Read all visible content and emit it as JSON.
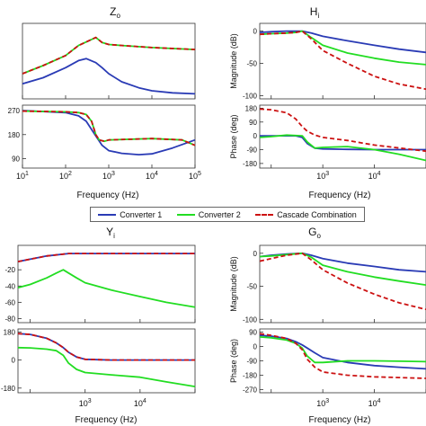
{
  "legend": {
    "items": [
      {
        "label": "Converter 1",
        "color": "#2a3bb5",
        "dash": "solid"
      },
      {
        "label": "Converter 2",
        "color": "#22dd22",
        "dash": "solid"
      },
      {
        "label": "Cascade Combination",
        "color": "#cc1111",
        "dash": "dashed"
      }
    ]
  },
  "chart_data": [
    {
      "type": "line",
      "title_main": "Z",
      "title_sub": "o",
      "xlabel": "Frequency  (Hz)",
      "xscale": "log",
      "xlim": [
        10,
        100000
      ],
      "x_ticks": [
        {
          "v": 10,
          "e": "1"
        },
        {
          "v": 100,
          "e": "2"
        },
        {
          "v": 1000,
          "e": "3"
        },
        {
          "v": 10000,
          "e": "4"
        },
        {
          "v": 100000,
          "e": "5"
        }
      ],
      "grid": false,
      "panels": [
        {
          "role": "magnitude",
          "ylabel": "",
          "ylim": [
            -45,
            30
          ],
          "yticks": [],
          "series": [
            {
              "name": "Converter 1",
              "x": [
                10,
                30,
                100,
                200,
                300,
                500,
                700,
                1000,
                2000,
                5000,
                10000,
                30000,
                100000
              ],
              "y": [
                -30,
                -24,
                -14,
                -7,
                -5,
                -9,
                -14,
                -20,
                -28,
                -34,
                -37,
                -39,
                -40
              ]
            },
            {
              "name": "Converter 2",
              "x": [
                10,
                30,
                100,
                200,
                400,
                500,
                700,
                1000,
                2000,
                10000,
                100000
              ],
              "y": [
                -20,
                -12,
                -2,
                8,
                14,
                16,
                11,
                9,
                8,
                6,
                4
              ]
            },
            {
              "name": "Cascade Combination",
              "x": [
                10,
                30,
                100,
                200,
                400,
                500,
                700,
                1000,
                2000,
                10000,
                100000
              ],
              "y": [
                -20,
                -12,
                -2,
                8,
                14,
                16,
                11,
                9,
                8,
                6,
                4
              ]
            }
          ]
        },
        {
          "role": "phase",
          "ylabel": "",
          "ylim": [
            55,
            290
          ],
          "yticks": [
            270,
            180,
            90
          ],
          "series": [
            {
              "name": "Converter 1",
              "x": [
                10,
                100,
                200,
                300,
                500,
                700,
                1000,
                2000,
                5000,
                10000,
                30000,
                100000
              ],
              "y": [
                270,
                262,
                250,
                230,
                175,
                140,
                120,
                110,
                105,
                108,
                130,
                160
              ]
            },
            {
              "name": "Converter 2",
              "x": [
                10,
                100,
                200,
                300,
                400,
                500,
                600,
                800,
                1000,
                10000,
                50000,
                100000
              ],
              "y": [
                268,
                265,
                262,
                255,
                230,
                180,
                160,
                155,
                160,
                165,
                160,
                140
              ]
            },
            {
              "name": "Cascade Combination",
              "x": [
                10,
                100,
                200,
                300,
                400,
                500,
                600,
                800,
                1000,
                10000,
                50000,
                100000
              ],
              "y": [
                268,
                265,
                262,
                255,
                230,
                180,
                160,
                155,
                160,
                165,
                160,
                140
              ]
            }
          ]
        }
      ]
    },
    {
      "type": "line",
      "title_main": "H",
      "title_sub": "i",
      "xlabel": "Frequency  (Hz)",
      "xscale": "log",
      "xlim": [
        60,
        100000
      ],
      "x_ticks": [
        {
          "v": 1000,
          "e": "3"
        },
        {
          "v": 10000,
          "e": "4"
        }
      ],
      "grid": false,
      "panels": [
        {
          "role": "magnitude",
          "ylabel": "Magnitude (dB)",
          "ylim": [
            -105,
            12
          ],
          "yticks": [
            0,
            -50,
            -100
          ],
          "series": [
            {
              "name": "Converter 1",
              "x": [
                60,
                100,
                200,
                400,
                600,
                1000,
                3000,
                10000,
                30000,
                100000
              ],
              "y": [
                -2,
                -1,
                0,
                0,
                -3,
                -8,
                -15,
                -22,
                -28,
                -33
              ]
            },
            {
              "name": "Converter 2",
              "x": [
                60,
                100,
                200,
                300,
                400,
                600,
                1000,
                3000,
                10000,
                30000,
                100000
              ],
              "y": [
                -5,
                -4,
                -3,
                -2,
                0,
                -10,
                -22,
                -34,
                -42,
                -48,
                -52
              ]
            },
            {
              "name": "Cascade Combination",
              "x": [
                60,
                100,
                200,
                300,
                400,
                600,
                1000,
                3000,
                10000,
                30000,
                100000
              ],
              "y": [
                -5,
                -4,
                -3,
                -2,
                0,
                -12,
                -30,
                -50,
                -70,
                -82,
                -90
              ]
            }
          ]
        },
        {
          "role": "phase",
          "ylabel": "Phase (deg)",
          "ylim": [
            -210,
            200
          ],
          "yticks": [
            180,
            90,
            0,
            -90,
            -180
          ],
          "series": [
            {
              "name": "Converter 1",
              "x": [
                60,
                100,
                200,
                300,
                400,
                500,
                700,
                1000,
                3000,
                10000,
                30000,
                100000
              ],
              "y": [
                0,
                0,
                0,
                0,
                -10,
                -50,
                -80,
                -85,
                -88,
                -90,
                -90,
                -90
              ]
            },
            {
              "name": "Converter 2",
              "x": [
                60,
                100,
                200,
                400,
                500,
                700,
                1000,
                3000,
                10000,
                30000,
                100000
              ],
              "y": [
                -10,
                -5,
                5,
                0,
                -40,
                -80,
                -75,
                -70,
                -90,
                -120,
                -160
              ]
            },
            {
              "name": "Cascade Combination",
              "x": [
                60,
                100,
                200,
                300,
                400,
                500,
                700,
                1000,
                3000,
                10000,
                100000
              ],
              "y": [
                175,
                170,
                150,
                110,
                60,
                30,
                5,
                -10,
                -30,
                -60,
                -100
              ]
            }
          ]
        }
      ]
    },
    {
      "type": "line",
      "title_main": "Y",
      "title_sub": "i",
      "xlabel": "Frequency  (Hz)",
      "xscale": "log",
      "xlim": [
        60,
        100000
      ],
      "x_ticks": [
        {
          "v": 1000,
          "e": "3"
        },
        {
          "v": 10000,
          "e": "4"
        }
      ],
      "grid": false,
      "panels": [
        {
          "role": "magnitude",
          "ylabel": "",
          "ylim": [
            -85,
            10
          ],
          "yticks": [
            -20,
            -40,
            -60,
            -80
          ],
          "series": [
            {
              "name": "Converter 1",
              "x": [
                60,
                100,
                200,
                500,
                1000,
                100000
              ],
              "y": [
                -10,
                -7,
                -3,
                0,
                0,
                0
              ]
            },
            {
              "name": "Converter 2",
              "x": [
                60,
                100,
                200,
                300,
                400,
                500,
                700,
                1000,
                3000,
                10000,
                30000,
                100000
              ],
              "y": [
                -42,
                -38,
                -30,
                -24,
                -20,
                -24,
                -30,
                -36,
                -45,
                -53,
                -60,
                -66
              ]
            },
            {
              "name": "Cascade Combination",
              "x": [
                60,
                100,
                200,
                500,
                1000,
                100000
              ],
              "y": [
                -10,
                -7,
                -3,
                0,
                0,
                0
              ]
            }
          ]
        },
        {
          "role": "phase",
          "ylabel": "",
          "ylim": [
            -210,
            200
          ],
          "yticks": [
            180,
            0,
            -180
          ],
          "series": [
            {
              "name": "Converter 1",
              "x": [
                60,
                100,
                200,
                300,
                400,
                500,
                700,
                1000,
                3000,
                100000
              ],
              "y": [
                170,
                165,
                140,
                110,
                80,
                50,
                20,
                5,
                0,
                0
              ]
            },
            {
              "name": "Converter 2",
              "x": [
                60,
                100,
                200,
                300,
                400,
                500,
                700,
                1000,
                3000,
                10000,
                30000,
                100000
              ],
              "y": [
                80,
                78,
                70,
                60,
                30,
                -20,
                -60,
                -80,
                -95,
                -110,
                -140,
                -170
              ]
            },
            {
              "name": "Cascade Combination",
              "x": [
                60,
                100,
                200,
                300,
                400,
                500,
                700,
                1000,
                3000,
                100000
              ],
              "y": [
                170,
                165,
                140,
                110,
                80,
                50,
                20,
                5,
                0,
                0
              ]
            }
          ]
        }
      ]
    },
    {
      "type": "line",
      "title_main": "G",
      "title_sub": "o",
      "xlabel": "Frequency  (Hz)",
      "xscale": "log",
      "xlim": [
        60,
        100000
      ],
      "x_ticks": [
        {
          "v": 1000,
          "e": "3"
        },
        {
          "v": 10000,
          "e": "4"
        }
      ],
      "grid": false,
      "panels": [
        {
          "role": "magnitude",
          "ylabel": "Magnitude (dB)",
          "ylim": [
            -105,
            12
          ],
          "yticks": [
            0,
            -50,
            -100
          ],
          "series": [
            {
              "name": "Converter 1",
              "x": [
                60,
                100,
                200,
                400,
                600,
                1000,
                3000,
                10000,
                30000,
                100000
              ],
              "y": [
                -5,
                -3,
                -1,
                0,
                -3,
                -8,
                -15,
                -20,
                -25,
                -28
              ]
            },
            {
              "name": "Converter 2",
              "x": [
                60,
                100,
                200,
                400,
                600,
                1000,
                3000,
                10000,
                30000,
                100000
              ],
              "y": [
                -5,
                -4,
                -2,
                0,
                -6,
                -18,
                -28,
                -36,
                -42,
                -48
              ]
            },
            {
              "name": "Cascade Combination",
              "x": [
                60,
                100,
                200,
                400,
                600,
                1000,
                3000,
                10000,
                30000,
                100000
              ],
              "y": [
                -12,
                -8,
                -3,
                0,
                -10,
                -25,
                -45,
                -62,
                -75,
                -85
              ]
            }
          ]
        },
        {
          "role": "phase",
          "ylabel": "Phase (deg)",
          "ylim": [
            -290,
            110
          ],
          "yticks": [
            90,
            0,
            -90,
            -180,
            -270
          ],
          "series": [
            {
              "name": "Converter 1",
              "x": [
                60,
                100,
                200,
                300,
                400,
                500,
                700,
                1000,
                3000,
                10000,
                30000,
                100000
              ],
              "y": [
                70,
                65,
                50,
                30,
                10,
                -10,
                -40,
                -70,
                -100,
                -120,
                -130,
                -140
              ]
            },
            {
              "name": "Converter 2",
              "x": [
                60,
                100,
                200,
                300,
                400,
                500,
                700,
                1000,
                3000,
                10000,
                30000,
                100000
              ],
              "y": [
                60,
                55,
                40,
                20,
                -10,
                -60,
                -100,
                -100,
                -90,
                -90,
                -92,
                -95
              ]
            },
            {
              "name": "Cascade Combination",
              "x": [
                60,
                100,
                200,
                300,
                400,
                500,
                700,
                1000,
                3000,
                10000,
                30000,
                100000
              ],
              "y": [
                80,
                70,
                50,
                20,
                -20,
                -80,
                -130,
                -160,
                -180,
                -190,
                -195,
                -200
              ]
            }
          ]
        }
      ]
    }
  ]
}
